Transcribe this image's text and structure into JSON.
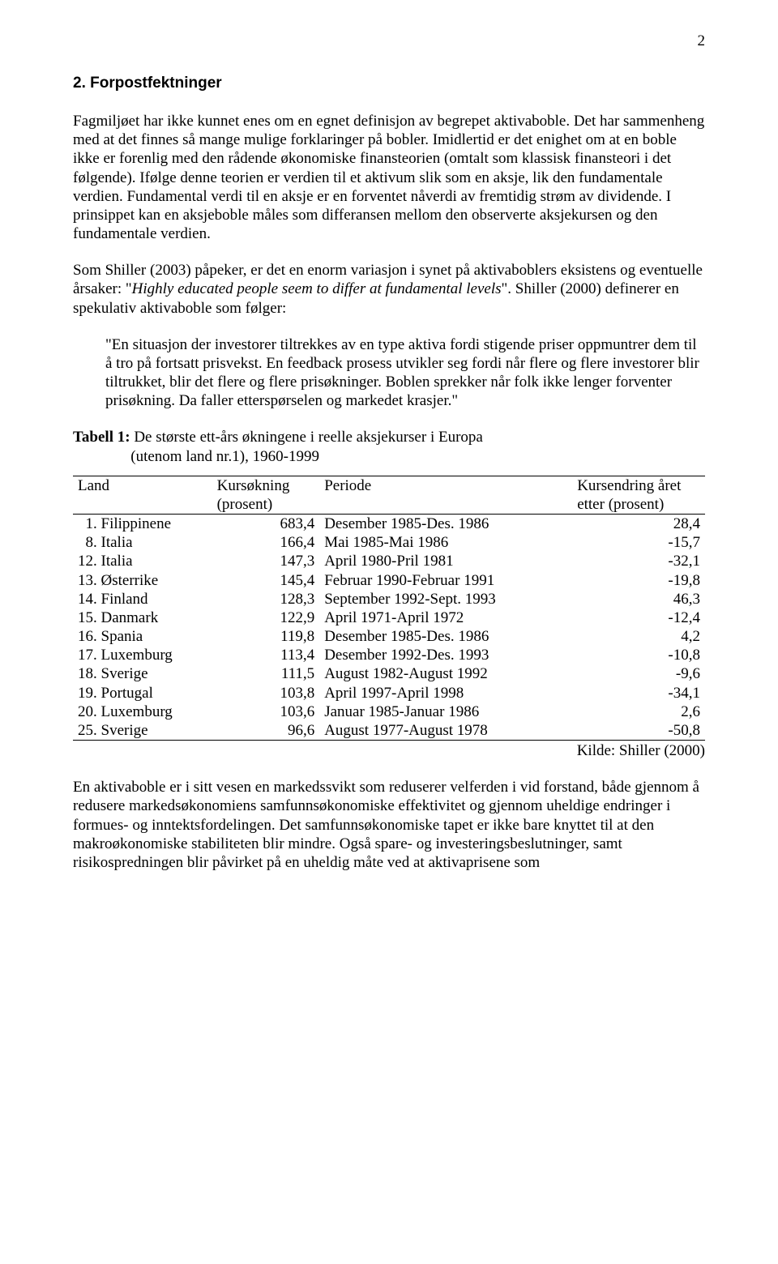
{
  "page_number": "2",
  "heading": "2. Forpostfektninger",
  "para1": "Fagmiljøet har ikke kunnet enes om en egnet definisjon av begrepet aktivaboble. Det har sammenheng med at det finnes så mange mulige forklaringer på bobler. Imidlertid er det enighet om at en boble ikke er forenlig med den rådende økonomiske finansteorien (omtalt som klassisk finansteori i det følgende). Ifølge denne teorien er verdien til et aktivum slik som en aksje, lik den fundamentale verdien. Fundamental verdi til en aksje er en forventet nåverdi av fremtidig strøm av dividende. I prinsippet kan en aksjeboble måles som differansen mellom den observerte aksjekursen og den fundamentale verdien.",
  "para2_a": "Som Shiller (2003) påpeker, er det en enorm variasjon i synet på aktivaboblers eksistens og eventuelle årsaker: \"",
  "para2_italic": "Highly educated people seem to differ at fundamental levels",
  "para2_b": "\". Shiller (2000) definerer en spekulativ aktivaboble som følger:",
  "quote": "\"En situasjon der investorer tiltrekkes av en type aktiva fordi stigende priser oppmuntrer dem til å tro på fortsatt prisvekst. En feedback prosess utvikler seg fordi når flere og flere investorer blir tiltrukket, blir det flere og flere prisøkninger. Boblen sprekker når folk ikke lenger forventer prisøkning. Da faller etterspørselen og markedet krasjer.\"",
  "table_caption_bold": "Tabell 1:",
  "table_caption_rest": " De største ett-års økningene i reelle aksjekurser i Europa",
  "table_caption_line2": "(utenom land nr.1), 1960-1999",
  "columns": {
    "land": "Land",
    "kurs": "Kursøkning (prosent)",
    "periode": "Periode",
    "end": "Kursendring året etter (prosent)"
  },
  "rows": [
    {
      "land": "  1. Filippinene",
      "kurs": "683,4",
      "periode": "Desember 1985-Des. 1986",
      "end": "28,4"
    },
    {
      "land": "  8. Italia",
      "kurs": "166,4",
      "periode": "Mai 1985-Mai 1986",
      "end": "-15,7"
    },
    {
      "land": "12. Italia",
      "kurs": "147,3",
      "periode": "April 1980-Pril 1981",
      "end": "-32,1"
    },
    {
      "land": "13. Østerrike",
      "kurs": "145,4",
      "periode": "Februar 1990-Februar 1991",
      "end": "-19,8"
    },
    {
      "land": "14. Finland",
      "kurs": "128,3",
      "periode": "September 1992-Sept. 1993",
      "end": "46,3"
    },
    {
      "land": "15. Danmark",
      "kurs": "122,9",
      "periode": "April 1971-April 1972",
      "end": "-12,4"
    },
    {
      "land": "16. Spania",
      "kurs": "119,8",
      "periode": "Desember 1985-Des. 1986",
      "end": "4,2"
    },
    {
      "land": "17. Luxemburg",
      "kurs": "113,4",
      "periode": "Desember 1992-Des. 1993",
      "end": "-10,8"
    },
    {
      "land": "18. Sverige",
      "kurs": "111,5",
      "periode": "August 1982-August 1992",
      "end": "-9,6"
    },
    {
      "land": "19. Portugal",
      "kurs": "103,8",
      "periode": "April 1997-April 1998",
      "end": "-34,1"
    },
    {
      "land": "20. Luxemburg",
      "kurs": "103,6",
      "periode": "Januar 1985-Januar 1986",
      "end": "2,6"
    },
    {
      "land": "25. Sverige",
      "kurs": "96,6",
      "periode": "August 1977-August 1978",
      "end": "-50,8"
    }
  ],
  "source": "Kilde: Shiller (2000)",
  "para3": "En aktivaboble er i sitt vesen en markedssvikt som reduserer velferden i vid forstand, både gjennom å redusere markedsøkonomiens samfunnsøkonomiske effektivitet og gjennom uheldige endringer i formues- og inntektsfordelingen. Det samfunnsøkonomiske tapet er ikke bare knyttet til at den makroøkonomiske stabiliteten blir mindre. Også spare- og investeringsbeslutninger, samt risikospredningen blir påvirket på en uheldig måte ved at aktivaprisene som"
}
